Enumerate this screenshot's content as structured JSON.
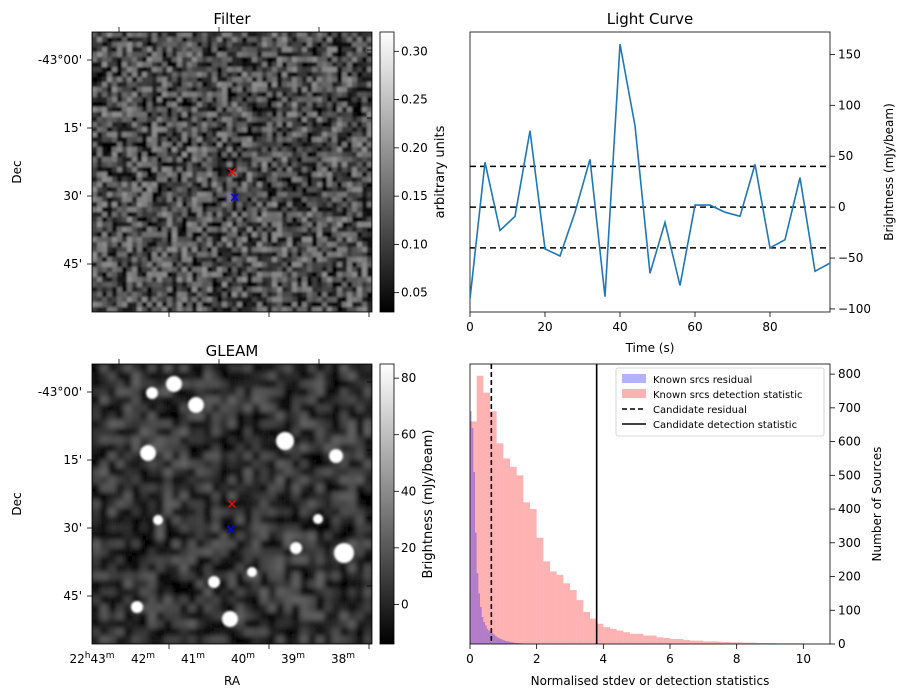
{
  "chart_data": [
    {
      "type": "heatmap",
      "title": "Filter",
      "ylabel": "Dec",
      "y_ticks": [
        "-43°00'",
        "15'",
        "30'",
        "45'"
      ],
      "colorbar": {
        "label": "arbitrary units",
        "ticks": [
          "0.05",
          "0.10",
          "0.15",
          "0.20",
          "0.25",
          "0.30"
        ],
        "range": [
          0.03,
          0.32
        ]
      },
      "markers": [
        {
          "symbol": "x",
          "color": "#ff0000",
          "ra_frac": 0.5,
          "dec_frac": 0.5
        },
        {
          "symbol": "x",
          "color": "#0000ff",
          "ra_frac": 0.51,
          "dec_frac": 0.59
        }
      ],
      "colormap": "gray"
    },
    {
      "type": "line",
      "title": "Light Curve",
      "xlabel": "Time (s)",
      "ylabel": "Brightness (mJy/beam)",
      "xlim": [
        0,
        96
      ],
      "ylim": [
        -103,
        172
      ],
      "x_ticks": [
        "0",
        "20",
        "40",
        "60",
        "80"
      ],
      "y_ticks": [
        "-100",
        "-50",
        "0",
        "50",
        "100",
        "150"
      ],
      "x": [
        0,
        4,
        8,
        12,
        16,
        20,
        24,
        28,
        32,
        36,
        40,
        44,
        48,
        52,
        56,
        60,
        64,
        68,
        72,
        76,
        80,
        84,
        88,
        92,
        96
      ],
      "values": [
        -90,
        44,
        -23,
        -9,
        75,
        -41,
        -48,
        -5,
        47,
        -88,
        160,
        80,
        -65,
        -15,
        -77,
        2,
        2,
        -5,
        -9,
        42,
        -40,
        -32,
        29,
        -63,
        -55
      ],
      "color": "#1f77b4",
      "hlines": [
        40,
        0,
        -40
      ]
    },
    {
      "type": "heatmap",
      "title": "GLEAM",
      "xlabel": "RA",
      "ylabel": "Dec",
      "x_ticks": [
        "22h43m",
        "42m",
        "41m",
        "40m",
        "39m",
        "38m"
      ],
      "y_ticks": [
        "-43°00'",
        "15'",
        "30'",
        "45'"
      ],
      "colorbar": {
        "label": "Brightness (mJy/beam)",
        "ticks": [
          "0",
          "20",
          "40",
          "60",
          "80"
        ],
        "range": [
          -14,
          85
        ]
      },
      "markers": [
        {
          "symbol": "x",
          "color": "#ff0000",
          "ra_frac": 0.5,
          "dec_frac": 0.5
        },
        {
          "symbol": "x",
          "color": "#0000ff",
          "ra_frac": 0.495,
          "dec_frac": 0.59
        }
      ],
      "colormap": "gray"
    },
    {
      "type": "bar",
      "xlabel": "Normalised stdev or detection statistics",
      "ylabel": "Number of Sources",
      "xlim": [
        0,
        10.8
      ],
      "ylim": [
        0,
        830
      ],
      "x_ticks": [
        "0",
        "2",
        "4",
        "6",
        "8",
        "10"
      ],
      "y_ticks": [
        "0",
        "100",
        "200",
        "300",
        "400",
        "500",
        "600",
        "700",
        "800"
      ],
      "bin_width": 0.2,
      "series": [
        {
          "name": "Known srcs residual",
          "color": "#0000ff",
          "alpha": 0.3,
          "x_start": 0,
          "bin_width": 0.05,
          "values": [
            690,
            640,
            510,
            330,
            210,
            150,
            110,
            80,
            65,
            55,
            45,
            40,
            35,
            32,
            28,
            24,
            20,
            17,
            15,
            13,
            11,
            9,
            8,
            7,
            6,
            5,
            4,
            3,
            3,
            2,
            2,
            1
          ]
        },
        {
          "name": "Known srcs detection statistic",
          "color": "#ff0000",
          "alpha": 0.3,
          "x_start": 0,
          "bin_width": 0.2,
          "values": [
            660,
            795,
            745,
            690,
            595,
            550,
            525,
            500,
            420,
            400,
            315,
            245,
            215,
            205,
            180,
            160,
            130,
            95,
            75,
            60,
            50,
            45,
            40,
            35,
            30,
            30,
            25,
            25,
            20,
            18,
            15,
            15,
            12,
            10,
            10,
            8,
            8,
            7,
            6,
            5,
            5,
            4,
            4,
            3,
            3,
            3,
            2,
            2,
            2,
            2,
            1,
            1,
            1,
            1
          ]
        }
      ],
      "vlines": [
        {
          "name": "Candidate residual",
          "x": 0.64,
          "style": "dashed"
        },
        {
          "name": "Candidate detection statistic",
          "x": 3.8,
          "style": "solid"
        }
      ],
      "legend": "top-right"
    }
  ]
}
